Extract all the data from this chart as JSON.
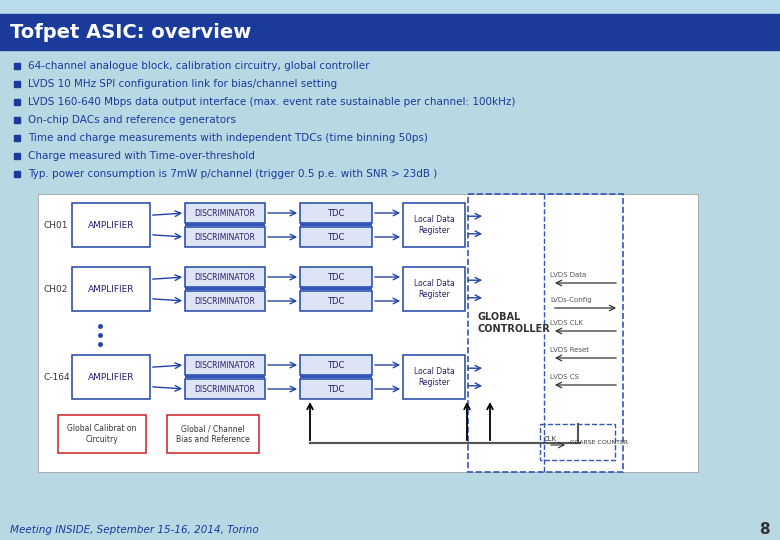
{
  "title": "Tofpet ASIC: overview",
  "title_bg": "#1a3a9c",
  "title_color": "#ffffff",
  "top_strip_color": "#b8dce8",
  "slide_bg": "#b8d8e4",
  "bullet_color": "#1a3a9c",
  "text_color": "#1a3a9c",
  "bullets": [
    "64-channel analogue block, calibration circuitry, global controller",
    "LVDS 10 MHz SPI configuration link for bias/channel setting",
    "LVDS 160-640 Mbps data output interface (max. event rate sustainable per channel: 100kHz)",
    "On-chip DACs and reference generators",
    "Time and charge measurements with independent TDCs (time binning 50ps)",
    "Charge measured with Time-over-threshold",
    "Typ. power consumption is 7mW p/channel (trigger 0.5 p.e. with SNR > 23dB )"
  ],
  "footer_text": "Meeting INSIDE, September 15-16, 2014, Torino",
  "footer_color": "#1a3a9c",
  "page_number": "8",
  "box_border_blue": "#2244aa",
  "box_border_red": "#cc2222",
  "box_fill_blue": "#dde4f5",
  "arrow_color": "#2244aa",
  "dashed_border": "#3355bb",
  "lvds_text_color": "#555555",
  "global_ctrl_color": "#333333"
}
